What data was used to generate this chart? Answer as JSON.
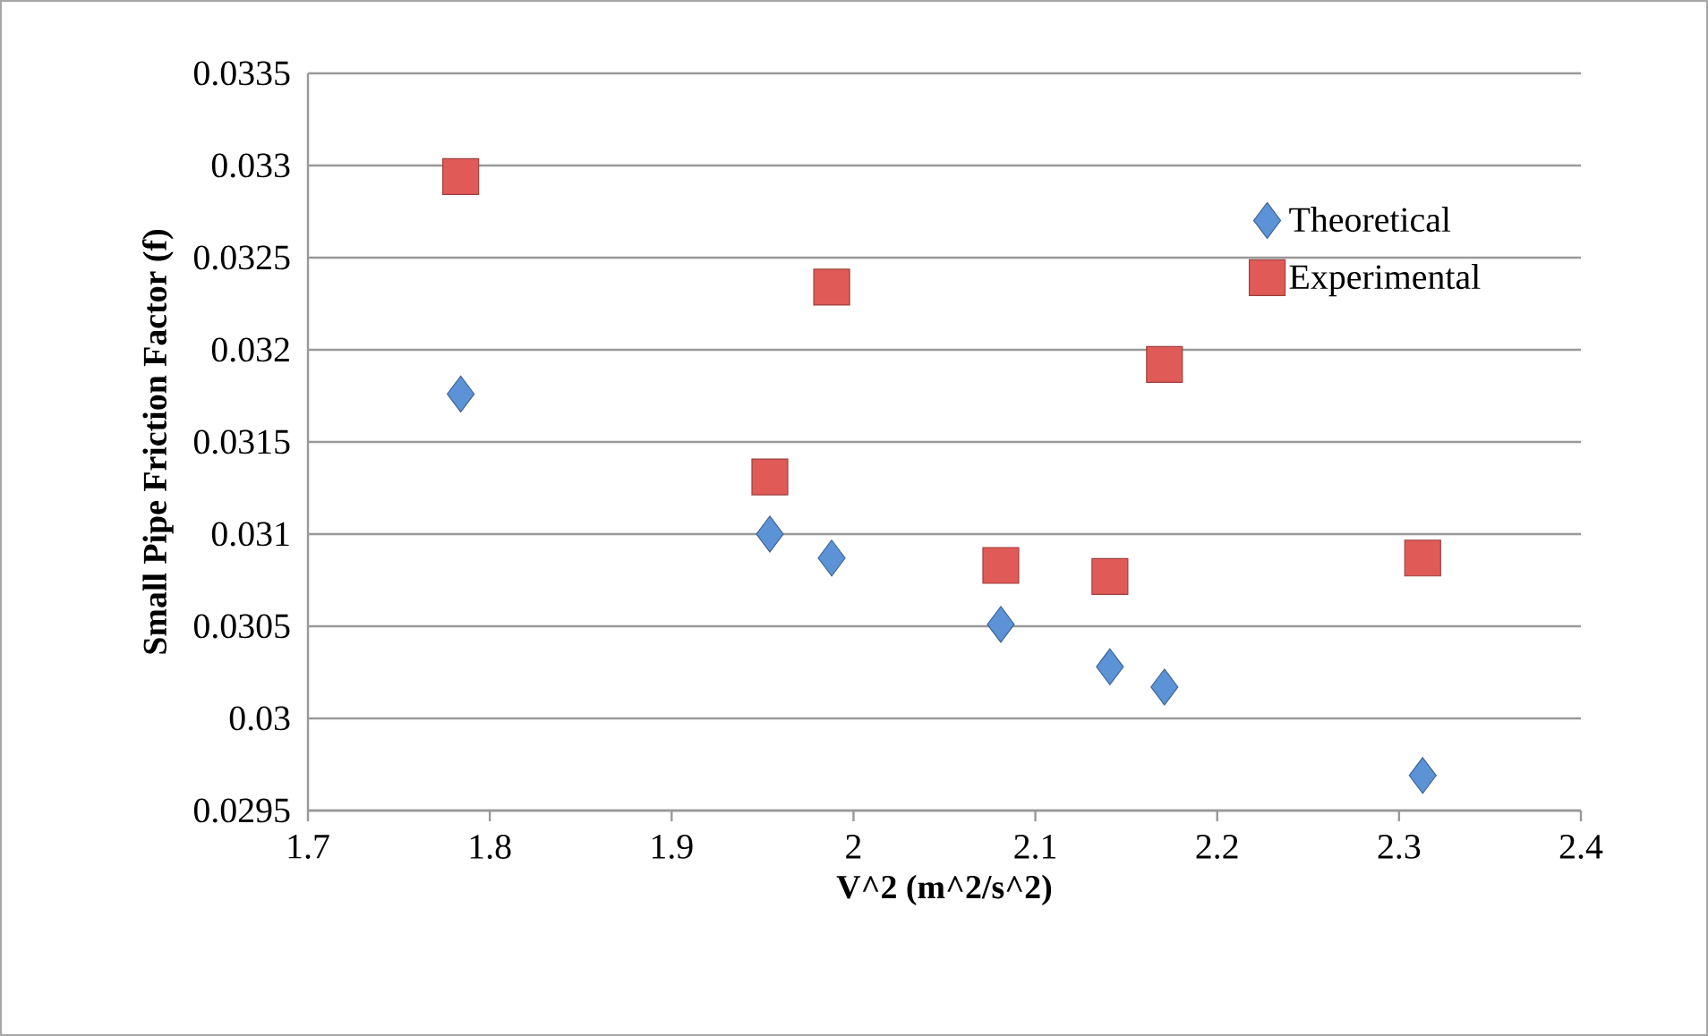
{
  "chart_data": {
    "type": "scatter",
    "xlabel": "V^2 (m^2/s^2)",
    "ylabel": "Small Pipe Friction Factor (f)",
    "x": [
      1.784,
      1.954,
      1.988,
      2.081,
      2.141,
      2.171,
      2.313
    ],
    "series": [
      {
        "name": "Theoretical",
        "color": "#5b93d6",
        "marker": "diamond",
        "values": [
          0.03176,
          0.031,
          0.03087,
          0.03051,
          0.03028,
          0.03017,
          0.02969
        ]
      },
      {
        "name": "Experimental",
        "color": "#e05b58",
        "marker": "square",
        "values": [
          0.03294,
          0.03131,
          0.03234,
          0.03083,
          0.03077,
          0.03192,
          0.03087
        ]
      }
    ],
    "xlim": [
      1.7,
      2.4
    ],
    "xticks": [
      1.7,
      1.8,
      1.9,
      2,
      2.1,
      2.2,
      2.3,
      2.4
    ],
    "ylim": [
      0.0295,
      0.0335
    ],
    "yticks": [
      0.0295,
      0.03,
      0.0305,
      0.031,
      0.0315,
      0.032,
      0.0325,
      0.033,
      0.0335
    ],
    "grid": "y",
    "legend": "right"
  }
}
